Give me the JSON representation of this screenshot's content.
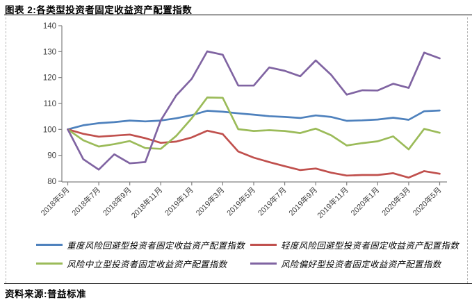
{
  "header": {
    "title": "图表 2:各类型投资者固定收益资产配置指数"
  },
  "source": {
    "label": "资料来源:普益标准"
  },
  "chart_data": {
    "type": "line",
    "title": "各类型投资者固定收益资产配置指数",
    "xlabel": "",
    "ylabel": "",
    "ylim": [
      80,
      140
    ],
    "yticks": [
      80,
      90,
      100,
      110,
      120,
      130,
      140
    ],
    "grid": false,
    "legend_position": "bottom",
    "categories": [
      "2018年5月",
      "2018年6月",
      "2018年7月",
      "2018年8月",
      "2018年9月",
      "2018年10月",
      "2018年11月",
      "2018年12月",
      "2019年1月",
      "2019年2月",
      "2019年3月",
      "2019年4月",
      "2019年5月",
      "2019年6月",
      "2019年7月",
      "2019年8月",
      "2019年9月",
      "2019年10月",
      "2019年11月",
      "2019年12月",
      "2020年1月",
      "2020年2月",
      "2020年3月",
      "2020年4月",
      "2020年5月"
    ],
    "x_tick_labels": [
      "2018年5月",
      "2018年7月",
      "2018年9月",
      "2018年11月",
      "2019年1月",
      "2019年3月",
      "2019年5月",
      "2019年7月",
      "2019年9月",
      "2019年11月",
      "2020年1月",
      "2020年3月",
      "2020年5月"
    ],
    "series": [
      {
        "name": "重度风险回避型投资者固定收益资产配置指数",
        "color": "#4E81BD",
        "values": [
          100,
          101.6,
          102.4,
          102.8,
          103.4,
          103.1,
          103.4,
          104.3,
          105.5,
          107.2,
          106.8,
          106.2,
          105.7,
          105.1,
          104.8,
          104.4,
          105.4,
          104.8,
          103.3,
          103.5,
          103.8,
          104.5,
          103.7,
          107.0,
          107.3
        ]
      },
      {
        "name": "轻度风险回避型投资者固定收益资产配置指数",
        "color": "#C0504D",
        "values": [
          100,
          98.3,
          97.2,
          97.6,
          98.0,
          96.6,
          94.8,
          95.3,
          96.9,
          99.5,
          98.2,
          91.5,
          89.1,
          87.4,
          85.8,
          84.3,
          84.9,
          83.3,
          82.2,
          82.4,
          82.4,
          83.1,
          81.4,
          83.9,
          82.9
        ]
      },
      {
        "name": "风险中立型投资者固定收益资产配置指数",
        "color": "#9BBB59",
        "values": [
          100,
          95.8,
          93.4,
          94.3,
          95.5,
          92.8,
          92.5,
          97.5,
          104.3,
          112.3,
          112.2,
          100.1,
          99.4,
          99.7,
          99.4,
          98.6,
          100.3,
          97.7,
          93.8,
          94.7,
          95.4,
          97.3,
          92.3,
          100.2,
          98.7
        ]
      },
      {
        "name": "风险偏好型投资者固定收益资产配置指数",
        "color": "#8064A2",
        "values": [
          100,
          88.5,
          84.5,
          90.4,
          86.9,
          87.4,
          103.5,
          113.1,
          119.5,
          130.1,
          128.8,
          116.9,
          116.9,
          123.9,
          122.6,
          120.5,
          126.6,
          121.0,
          113.4,
          115.1,
          115.0,
          117.6,
          116.0,
          129.6,
          127.4
        ]
      }
    ],
    "axis_color": "#808080",
    "tick_label_color": "#404040"
  }
}
